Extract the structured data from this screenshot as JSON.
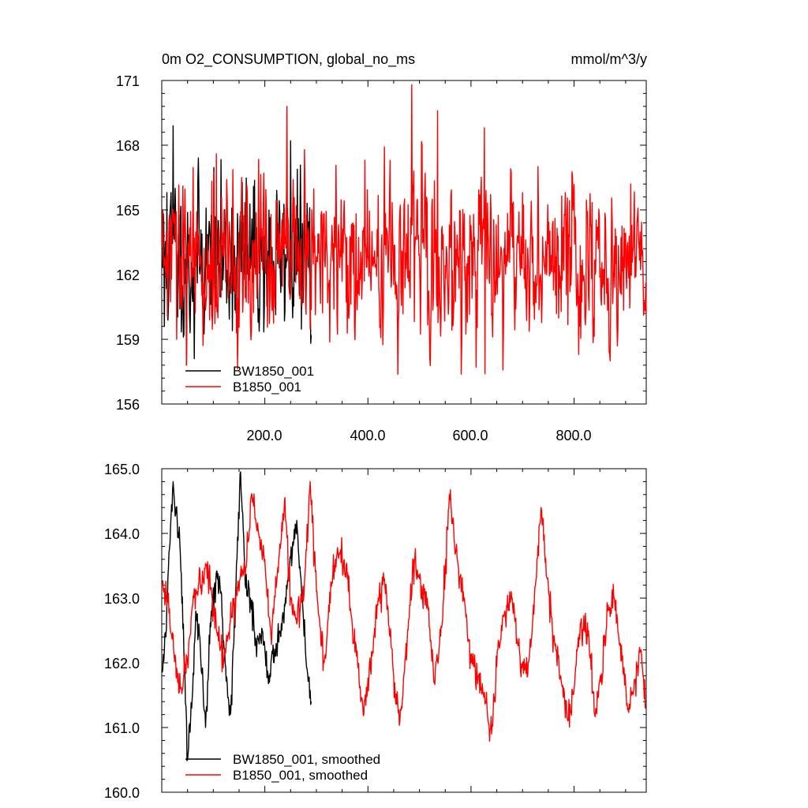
{
  "chart_data": [
    {
      "type": "line",
      "title": "0m O2_CONSUMPTION, global_no_ms",
      "units": "mmol/m^3/y",
      "xlim": [
        0,
        940
      ],
      "ylim": [
        156,
        171
      ],
      "x_ticks": [
        200,
        400,
        600,
        800
      ],
      "x_tick_labels": [
        "200.0",
        "400.0",
        "600.0",
        "800.0"
      ],
      "y_ticks": [
        156,
        159,
        162,
        165,
        168,
        171
      ],
      "y_tick_labels": [
        "156",
        "159",
        "162",
        "165",
        "168",
        "171"
      ],
      "legend_position": "bottom-left",
      "grid": false,
      "series": [
        {
          "name": "BW1850_001",
          "color": "#000000",
          "x_range": [
            1,
            290
          ],
          "mean": 162.8,
          "amplitude": 1.7,
          "seed": 11,
          "key_points": [
            [
              1,
              162.5
            ],
            [
              5,
              159.6
            ],
            [
              10,
              165.8
            ],
            [
              22,
              168.9
            ],
            [
              26,
              166.0
            ],
            [
              40,
              161.5
            ],
            [
              48,
              157.8
            ],
            [
              55,
              159.3
            ],
            [
              63,
              158.1
            ],
            [
              90,
              162.8
            ],
            [
              110,
              164.5
            ],
            [
              135,
              163.0
            ],
            [
              165,
              162.0
            ],
            [
              200,
              163.7
            ],
            [
              225,
              162.5
            ],
            [
              245,
              163.5
            ],
            [
              250,
              168.2
            ],
            [
              262,
              162.0
            ],
            [
              280,
              161.0
            ],
            [
              288,
              161.5
            ],
            [
              290,
              159.2
            ]
          ]
        },
        {
          "name": "B1850_001",
          "color": "#ff0000",
          "x_range": [
            1,
            940
          ],
          "mean": 162.6,
          "amplitude": 1.7,
          "seed": 29,
          "key_points": [
            [
              1,
              163.4
            ],
            [
              48,
              157.8
            ],
            [
              106,
              167.6
            ],
            [
              155,
              166.5
            ],
            [
              198,
              166.7
            ],
            [
              243,
              169.8
            ],
            [
              394,
              167.3
            ],
            [
              485,
              170.8
            ],
            [
              505,
              168.0
            ],
            [
              520,
              158.1
            ],
            [
              535,
              169.6
            ],
            [
              610,
              157.7
            ],
            [
              627,
              157.4
            ],
            [
              700,
              165.8
            ],
            [
              730,
              167.0
            ],
            [
              870,
              158.0
            ],
            [
              910,
              166.2
            ],
            [
              940,
              160.2
            ]
          ]
        }
      ]
    },
    {
      "type": "line",
      "xlim": [
        0,
        940
      ],
      "ylim": [
        160,
        165
      ],
      "y_ticks": [
        160,
        161,
        162,
        163,
        164,
        165
      ],
      "y_tick_labels": [
        "160.0",
        "161.0",
        "162.0",
        "163.0",
        "164.0",
        "165.0"
      ],
      "legend_position": "bottom-left",
      "grid": false,
      "series": [
        {
          "name": "BW1850_001, smoothed",
          "color": "#000000",
          "x_range": [
            1,
            290
          ],
          "noise": 0.12,
          "seed": 5,
          "key_points": [
            [
              1,
              161.85
            ],
            [
              8,
              162.4
            ],
            [
              14,
              163.7
            ],
            [
              22,
              164.8
            ],
            [
              27,
              164.3
            ],
            [
              34,
              164.1
            ],
            [
              42,
              162.6
            ],
            [
              50,
              160.5
            ],
            [
              58,
              161.3
            ],
            [
              66,
              162.8
            ],
            [
              75,
              162.2
            ],
            [
              85,
              161.0
            ],
            [
              96,
              162.8
            ],
            [
              106,
              163.4
            ],
            [
              115,
              163.1
            ],
            [
              123,
              162.0
            ],
            [
              133,
              161.2
            ],
            [
              143,
              163.0
            ],
            [
              153,
              164.95
            ],
            [
              162,
              163.2
            ],
            [
              172,
              163.0
            ],
            [
              183,
              162.3
            ],
            [
              195,
              162.5
            ],
            [
              208,
              161.8
            ],
            [
              222,
              162.3
            ],
            [
              236,
              162.7
            ],
            [
              248,
              163.5
            ],
            [
              262,
              164.2
            ],
            [
              274,
              162.8
            ],
            [
              282,
              161.9
            ],
            [
              290,
              161.4
            ]
          ]
        },
        {
          "name": "B1850_001, smoothed",
          "color": "#ff0000",
          "x_range": [
            1,
            940
          ],
          "noise": 0.12,
          "seed": 17,
          "key_points": [
            [
              1,
              163.2
            ],
            [
              12,
              163.0
            ],
            [
              24,
              162.1
            ],
            [
              36,
              161.6
            ],
            [
              50,
              162.0
            ],
            [
              62,
              163.0
            ],
            [
              76,
              163.2
            ],
            [
              90,
              163.4
            ],
            [
              106,
              162.5
            ],
            [
              120,
              162.0
            ],
            [
              135,
              162.7
            ],
            [
              152,
              163.3
            ],
            [
              165,
              163.6
            ],
            [
              175,
              164.6
            ],
            [
              188,
              164.0
            ],
            [
              200,
              163.6
            ],
            [
              212,
              162.4
            ],
            [
              226,
              163.4
            ],
            [
              238,
              164.5
            ],
            [
              250,
              163.0
            ],
            [
              262,
              162.6
            ],
            [
              278,
              163.4
            ],
            [
              288,
              164.8
            ],
            [
              300,
              163.1
            ],
            [
              315,
              162.0
            ],
            [
              332,
              163.4
            ],
            [
              345,
              163.7
            ],
            [
              360,
              163.3
            ],
            [
              378,
              162.1
            ],
            [
              392,
              161.2
            ],
            [
              405,
              161.9
            ],
            [
              418,
              162.9
            ],
            [
              432,
              163.3
            ],
            [
              450,
              161.8
            ],
            [
              462,
              161.1
            ],
            [
              476,
              162.3
            ],
            [
              488,
              163.6
            ],
            [
              500,
              163.3
            ],
            [
              515,
              163.0
            ],
            [
              528,
              161.7
            ],
            [
              544,
              162.6
            ],
            [
              558,
              164.6
            ],
            [
              570,
              163.7
            ],
            [
              585,
              163.1
            ],
            [
              600,
              162.0
            ],
            [
              615,
              161.8
            ],
            [
              628,
              161.4
            ],
            [
              640,
              160.9
            ],
            [
              652,
              162.2
            ],
            [
              666,
              162.8
            ],
            [
              680,
              163.0
            ],
            [
              695,
              162.1
            ],
            [
              710,
              161.8
            ],
            [
              725,
              163.2
            ],
            [
              736,
              164.4
            ],
            [
              748,
              163.3
            ],
            [
              760,
              162.4
            ],
            [
              774,
              161.8
            ],
            [
              788,
              161.1
            ],
            [
              800,
              161.6
            ],
            [
              812,
              162.6
            ],
            [
              828,
              162.5
            ],
            [
              840,
              161.2
            ],
            [
              852,
              161.7
            ],
            [
              865,
              162.8
            ],
            [
              878,
              163.0
            ],
            [
              890,
              162.3
            ],
            [
              905,
              161.3
            ],
            [
              918,
              161.7
            ],
            [
              930,
              162.2
            ],
            [
              940,
              161.3
            ]
          ]
        }
      ]
    }
  ]
}
